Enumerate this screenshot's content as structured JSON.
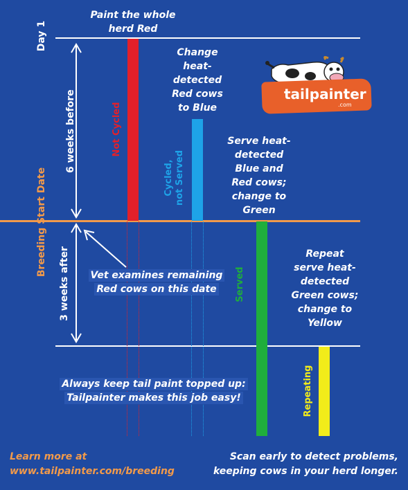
{
  "labels": {
    "day1": "Day 1",
    "six_weeks_before": "6 weeks before",
    "three_weeks_after": "3 weeks after",
    "breeding_start_date": "Breeding Start Date",
    "step1": "Paint the whole herd Red",
    "step2": "Change heat-detected Red cows to Blue",
    "step3": "Serve heat-detected Blue and Red cows; change to Green",
    "step4": "Repeat serve heat-detected Green cows; change to Yellow",
    "bar_not_cycled": "Not Cycled",
    "bar_cycled_line1": "Cycled,",
    "bar_cycled_line2": "not Served",
    "bar_served": "Served",
    "bar_repeating": "Repeating",
    "vet_line1": "Vet examines remaining",
    "vet_line2": "Red cows on this date",
    "tip_line1": "Always keep tail paint topped up:",
    "tip_line2": "Tailpainter makes this job easy!",
    "learn_line1": "Learn more at",
    "learn_line2": "www.tailpainter.com/breeding",
    "scan_line1": "Scan early to detect problems,",
    "scan_line2": "keeping cows in your herd longer."
  },
  "logo": {
    "brand": "tailpainter",
    "domain": ".com"
  },
  "colors": {
    "background": "#1f4aa1",
    "red": "#e3202a",
    "blue": "#1ea3e8",
    "green": "#1fae3c",
    "yellow": "#f2ec1a",
    "orange": "#f29a4a",
    "logo_orange": "#e8602a"
  }
}
